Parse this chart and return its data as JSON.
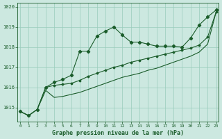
{
  "title": "Graphe pression niveau de la mer (hPa)",
  "bg_color": "#cce8e0",
  "grid_color": "#99ccbb",
  "line_color": "#1a5c2a",
  "ylim": [
    1014.3,
    1020.2
  ],
  "xlim": [
    -0.3,
    23.3
  ],
  "yticks": [
    1015,
    1016,
    1017,
    1018,
    1019,
    1020
  ],
  "xticks": [
    0,
    1,
    2,
    3,
    4,
    5,
    6,
    7,
    8,
    9,
    10,
    11,
    12,
    13,
    14,
    15,
    16,
    17,
    18,
    19,
    20,
    21,
    22,
    23
  ],
  "series1_x": [
    0,
    1,
    2,
    3,
    4,
    5,
    6,
    7,
    8,
    9,
    10,
    11,
    12,
    13,
    14,
    15,
    16,
    17,
    18,
    19,
    20,
    21,
    22,
    23
  ],
  "series1_y": [
    1014.8,
    1014.6,
    1014.9,
    1016.0,
    1016.25,
    1016.4,
    1016.6,
    1017.8,
    1017.8,
    1018.55,
    1018.8,
    1019.0,
    1018.6,
    1018.25,
    1018.25,
    1018.15,
    1018.05,
    1018.05,
    1018.05,
    1018.0,
    1018.45,
    1019.1,
    1019.5,
    1019.85
  ],
  "series2_x": [
    0,
    1,
    2,
    3,
    4,
    5,
    6,
    7,
    8,
    9,
    10,
    11,
    12,
    13,
    14,
    15,
    16,
    17,
    18,
    19,
    20,
    21,
    22,
    23
  ],
  "series2_y": [
    1014.8,
    1014.6,
    1014.9,
    1016.0,
    1016.1,
    1016.15,
    1016.2,
    1016.35,
    1016.55,
    1016.7,
    1016.85,
    1017.0,
    1017.1,
    1017.25,
    1017.35,
    1017.45,
    1017.55,
    1017.65,
    1017.75,
    1017.85,
    1017.95,
    1018.1,
    1018.5,
    1019.75
  ],
  "series3_x": [
    0,
    1,
    2,
    3,
    4,
    5,
    6,
    7,
    8,
    9,
    10,
    11,
    12,
    13,
    14,
    15,
    16,
    17,
    18,
    19,
    20,
    21,
    22,
    23
  ],
  "series3_y": [
    1014.8,
    1014.6,
    1014.9,
    1015.85,
    1015.5,
    1015.55,
    1015.65,
    1015.75,
    1015.9,
    1016.05,
    1016.2,
    1016.35,
    1016.5,
    1016.6,
    1016.7,
    1016.85,
    1016.95,
    1017.1,
    1017.25,
    1017.4,
    1017.55,
    1017.75,
    1018.15,
    1019.75
  ]
}
